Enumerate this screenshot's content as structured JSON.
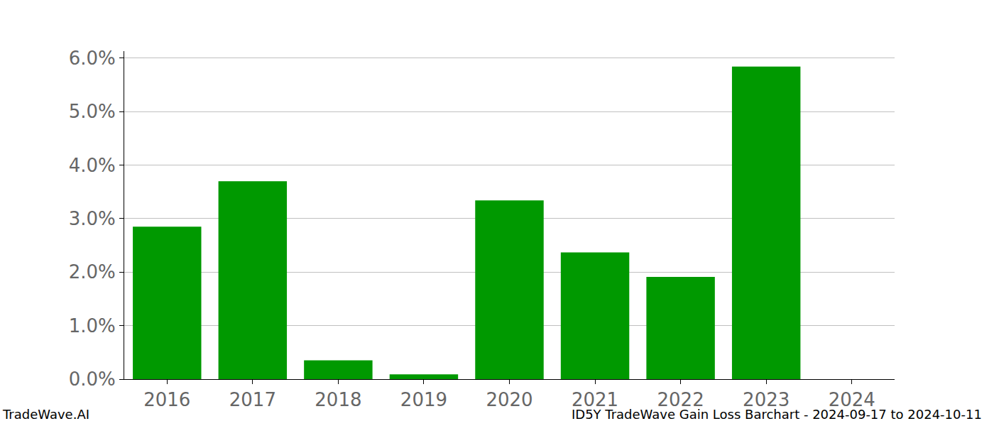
{
  "chart_data": {
    "type": "bar",
    "categories": [
      "2016",
      "2017",
      "2018",
      "2019",
      "2020",
      "2021",
      "2022",
      "2023",
      "2024"
    ],
    "values": [
      2.85,
      3.7,
      0.35,
      0.09,
      3.34,
      2.37,
      1.91,
      5.84,
      0
    ],
    "color": "#009900",
    "ylim": [
      0,
      6.13
    ],
    "yticks": [
      {
        "value": 0,
        "label": "0.0%"
      },
      {
        "value": 1,
        "label": "1.0%"
      },
      {
        "value": 2,
        "label": "2.0%"
      },
      {
        "value": 3,
        "label": "3.0%"
      },
      {
        "value": 4,
        "label": "4.0%"
      },
      {
        "value": 5,
        "label": "5.0%"
      },
      {
        "value": 6,
        "label": "6.0%"
      }
    ],
    "grid": true,
    "annotations": [
      "TradeWave.AI",
      "ID5Y TradeWave Gain Loss Barchart - 2024-09-17 to 2024-10-11"
    ]
  }
}
